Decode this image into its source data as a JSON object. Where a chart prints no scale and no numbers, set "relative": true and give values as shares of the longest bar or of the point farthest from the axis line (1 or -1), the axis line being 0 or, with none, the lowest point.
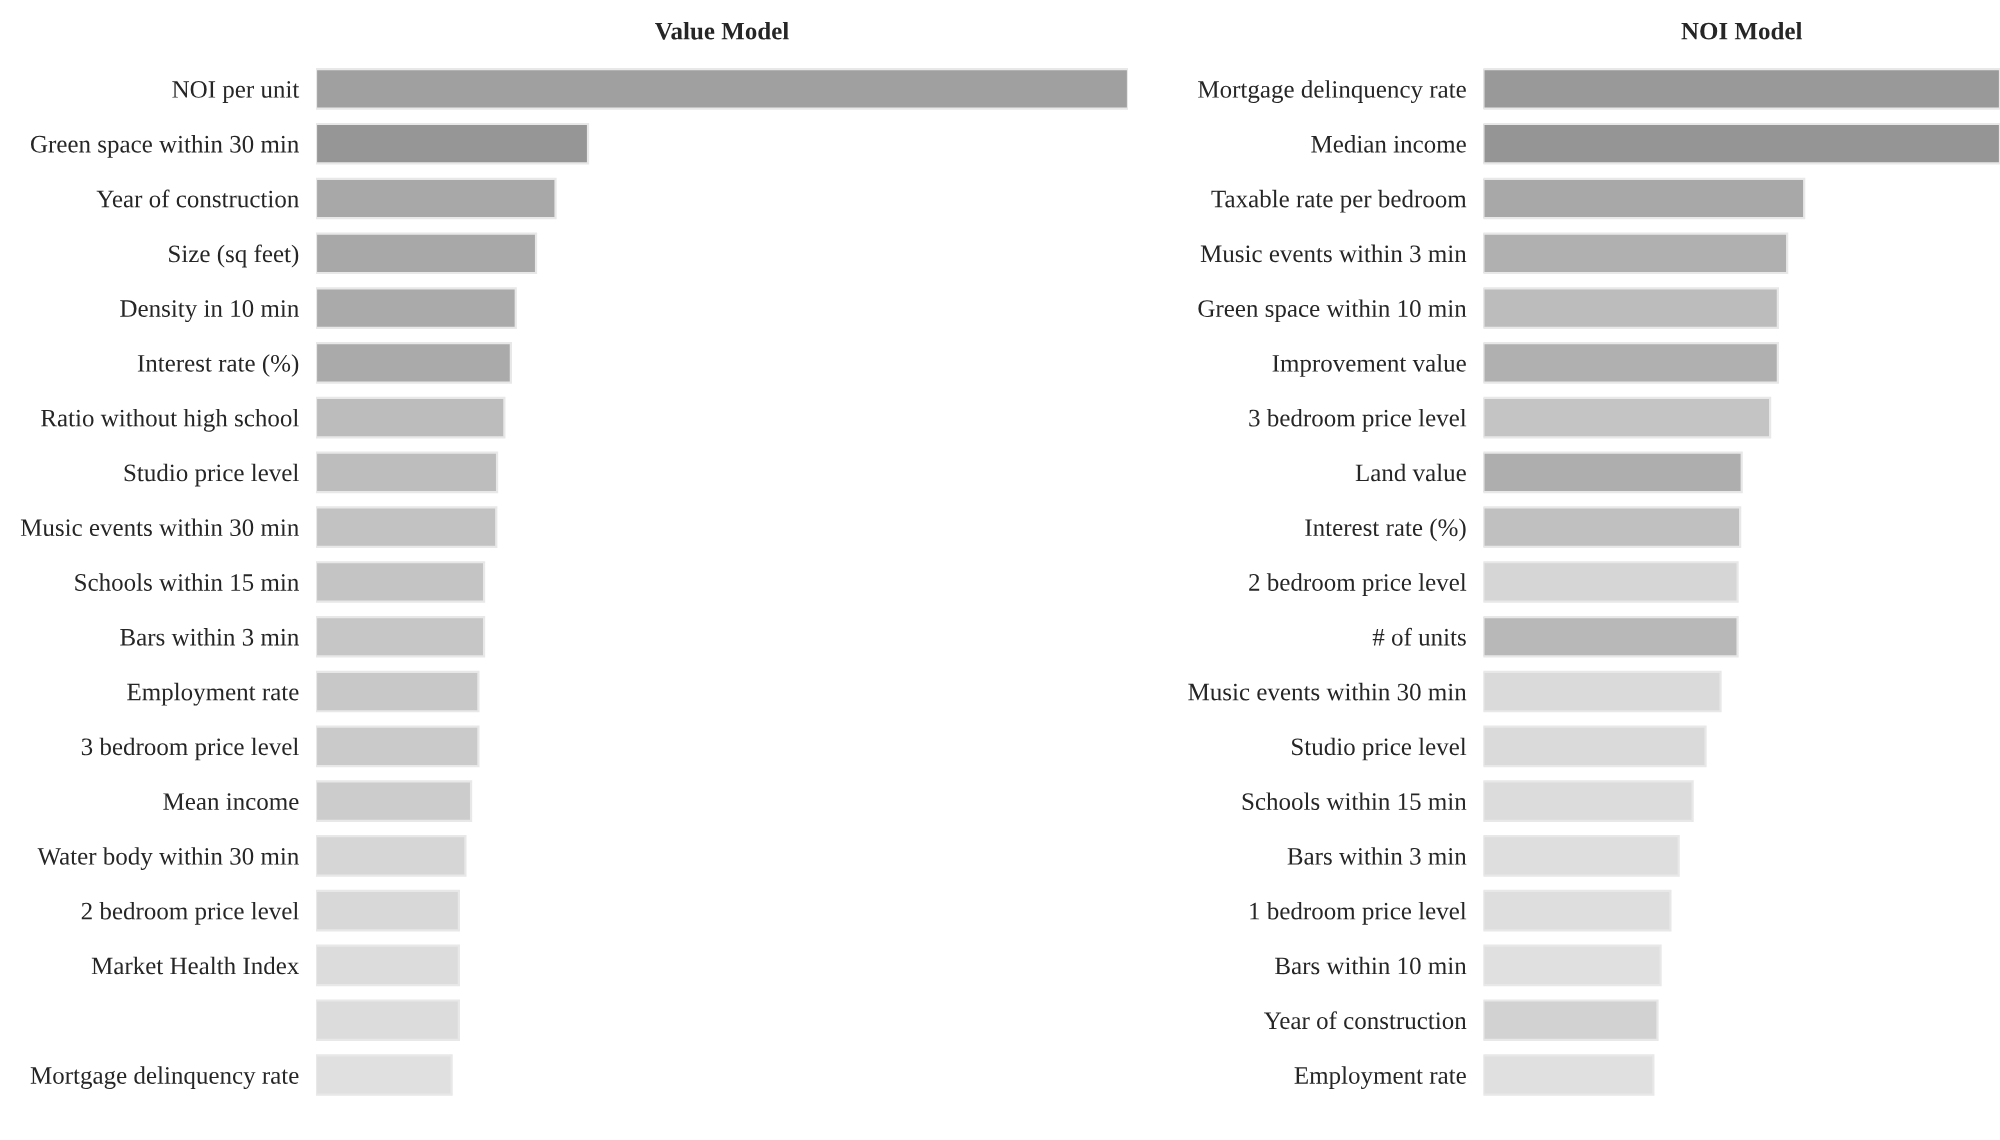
{
  "chart_data": [
    {
      "type": "bar",
      "title": "Value Model",
      "orientation": "horizontal",
      "relative": true,
      "categories": [
        "NOI per unit",
        "Green space within 30 min",
        "Year of construction",
        "Size (sq feet)",
        "Density in 10 min",
        "Interest rate (%)",
        "Ratio without high school",
        "Studio price level",
        "Music events within 30 min",
        "Schools within 15 min",
        "Bars within 3 min",
        "Employment rate",
        "3 bedroom price level",
        "Mean income",
        "Water body within 30 min",
        "2 bedroom price level",
        "Market Health Index",
        null,
        "Mortgage delinquency rate"
      ],
      "values": [
        1,
        0.335,
        0.295,
        0.271,
        0.246,
        0.24,
        0.232,
        0.223,
        0.222,
        0.207,
        0.207,
        0.2,
        0.2,
        0.191,
        0.184,
        0.176,
        0.176,
        0.176,
        0.167
      ],
      "colors": [
        "#a0a0a0",
        "#969696",
        "#a8a8a8",
        "#a8a8a8",
        "#aaaaaa",
        "#aaaaaa",
        "#bcbcbc",
        "#bdbdbd",
        "#c2c2c2",
        "#c4c4c4",
        "#c6c6c6",
        "#c8c8c8",
        "#cacaca",
        "#cccccc",
        "#d6d6d6",
        "#d8d8d8",
        "#dcdcdc",
        "#dcdcdc",
        "#e0e0e0"
      ]
    },
    {
      "type": "bar",
      "title": "NOI Model",
      "orientation": "horizontal",
      "relative": true,
      "categories": [
        "Mortgage delinquency rate",
        "Median income",
        "Taxable rate per bedroom",
        "Music events within 3 min",
        "Green space within 10 min",
        "Improvement value",
        "3 bedroom price level",
        "Land value",
        "Interest rate (%)",
        "2 bedroom price level",
        "# of units",
        "Music events within 30 min",
        "Studio price level",
        "Schools within 15 min",
        "Bars within 3 min",
        "1 bedroom price level",
        "Bars within 10 min",
        "Year of construction",
        "Employment rate"
      ],
      "values": [
        1,
        1,
        0.621,
        0.588,
        0.57,
        0.57,
        0.555,
        0.5,
        0.497,
        0.492,
        0.492,
        0.459,
        0.43,
        0.405,
        0.378,
        0.362,
        0.343,
        0.337,
        0.329
      ],
      "colors": [
        "#999999",
        "#959595",
        "#a8a8a8",
        "#b0b0b0",
        "#bcbcbc",
        "#b0b0b0",
        "#c4c4c4",
        "#aeaeae",
        "#c0c0c0",
        "#d6d6d6",
        "#b8b8b8",
        "#dadada",
        "#dadada",
        "#dcdcdc",
        "#dedede",
        "#dedede",
        "#e0e0e0",
        "#d2d2d2",
        "#e0e0e0"
      ]
    }
  ]
}
